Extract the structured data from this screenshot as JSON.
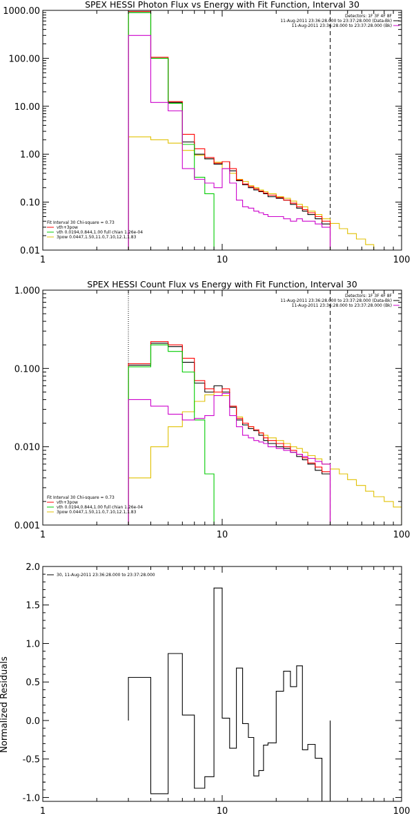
{
  "chart_data": [
    {
      "type": "line",
      "title": "SPEX HESSI Photon Flux vs Energy with Fit Function, Interval 30",
      "xlabel": "",
      "ylabel": "",
      "xscale": "log",
      "yscale": "log",
      "xlim": [
        1,
        100
      ],
      "ylim": [
        0.01,
        1000
      ],
      "x_ticks": [
        {
          "v": 1,
          "label": "1"
        },
        {
          "v": 10,
          "label": "10"
        },
        {
          "v": 100,
          "label": "100"
        }
      ],
      "y_ticks": [
        {
          "v": 0.01,
          "label": "0.01"
        },
        {
          "v": 0.1,
          "label": "0.10"
        },
        {
          "v": 1,
          "label": "1.00"
        },
        {
          "v": 10,
          "label": "10.00"
        },
        {
          "v": 100,
          "label": "100.00"
        },
        {
          "v": 1000,
          "label": "1000.00"
        }
      ],
      "vlines": [
        {
          "x": 3,
          "style": "dotted",
          "color": "#000000"
        },
        {
          "x": 40,
          "style": "dashed",
          "color": "#000000"
        }
      ],
      "header_text": [
        "Detectors: 1F 3F 4F 8F",
        "11-Aug-2011 23:36:28.000 to 23:37:28.000 (Data-Bk)",
        "11-Aug-2011 23:36:28.000 to 23:37:28.000 (Bk)"
      ],
      "header_colors": [
        "",
        "#000000",
        "#cc00cc"
      ],
      "legend_title": "Fit Interval 30   Chi-square = 0.73",
      "legend": [
        {
          "label": "vth+3pow",
          "color": "#ff0000"
        },
        {
          "label": "vth 0.0194,0.844,1.00   full chian 1.26e-04",
          "color": "#00cc00"
        },
        {
          "label": "3pow 0.0447,1.50,11.0,7.10,12.1,1.83",
          "color": "#e0c000"
        }
      ],
      "series": [
        {
          "color": "#e0c000",
          "edges": [
            3,
            4,
            5,
            6,
            7,
            8,
            9,
            10,
            11,
            12,
            13,
            14,
            15,
            16,
            17,
            18,
            20,
            22,
            24,
            26,
            28,
            30,
            33,
            36,
            40,
            45,
            50,
            56,
            63,
            70,
            80
          ],
          "values": [
            2.3,
            2.0,
            1.7,
            1.2,
            0.95,
            0.8,
            0.68,
            0.5,
            0.4,
            0.3,
            0.27,
            0.22,
            0.2,
            0.18,
            0.165,
            0.15,
            0.13,
            0.12,
            0.105,
            0.09,
            0.08,
            0.065,
            0.055,
            0.045,
            0.036,
            0.028,
            0.022,
            0.017,
            0.013,
            0.01
          ]
        },
        {
          "color": "#000000",
          "edges": [
            3,
            4,
            5,
            6,
            7,
            8,
            9,
            10,
            11,
            12,
            13,
            14,
            15,
            16,
            17,
            18,
            20,
            22,
            24,
            26,
            28,
            30,
            33,
            36,
            40
          ],
          "values": [
            900,
            100,
            12,
            1.8,
            1.0,
            0.8,
            0.62,
            0.7,
            0.45,
            0.28,
            0.23,
            0.2,
            0.18,
            0.165,
            0.15,
            0.13,
            0.12,
            0.11,
            0.09,
            0.075,
            0.065,
            0.055,
            0.045,
            0.035
          ]
        },
        {
          "color": "#ff0000",
          "edges": [
            3,
            4,
            5,
            6,
            7,
            8,
            9,
            10,
            11,
            12,
            13,
            14,
            15,
            16,
            17,
            18,
            20,
            22,
            24,
            26,
            28,
            30,
            33,
            36,
            40
          ],
          "values": [
            950,
            105,
            12.5,
            2.6,
            1.3,
            0.85,
            0.65,
            0.7,
            0.5,
            0.29,
            0.24,
            0.21,
            0.19,
            0.17,
            0.155,
            0.14,
            0.125,
            0.11,
            0.095,
            0.08,
            0.07,
            0.06,
            0.05,
            0.04
          ]
        },
        {
          "color": "#00cc00",
          "edges": [
            3,
            4,
            5,
            6,
            7,
            8,
            9
          ],
          "values": [
            900,
            100,
            11.5,
            1.6,
            0.33,
            0.15
          ]
        },
        {
          "color": "#cc00cc",
          "edges": [
            3,
            4,
            5,
            6,
            7,
            8,
            9,
            10,
            11,
            12,
            13,
            14,
            15,
            16,
            17,
            18,
            20,
            22,
            24,
            26,
            28,
            30,
            33,
            36,
            40
          ],
          "values": [
            300,
            12,
            8,
            0.5,
            0.3,
            0.25,
            0.2,
            0.5,
            0.25,
            0.11,
            0.08,
            0.075,
            0.065,
            0.06,
            0.055,
            0.05,
            0.05,
            0.045,
            0.04,
            0.045,
            0.04,
            0.04,
            0.035,
            0.03
          ]
        }
      ]
    },
    {
      "type": "line",
      "title": "SPEX HESSI Count Flux vs Energy with Fit Function, Interval 30",
      "xlabel": "",
      "ylabel": "",
      "xscale": "log",
      "yscale": "log",
      "xlim": [
        1,
        100
      ],
      "ylim": [
        0.001,
        1
      ],
      "x_ticks": [
        {
          "v": 1,
          "label": "1"
        },
        {
          "v": 10,
          "label": "10"
        },
        {
          "v": 100,
          "label": "100"
        }
      ],
      "y_ticks": [
        {
          "v": 0.001,
          "label": "0.001"
        },
        {
          "v": 0.01,
          "label": "0.010"
        },
        {
          "v": 0.1,
          "label": "0.100"
        },
        {
          "v": 1,
          "label": "1.000"
        }
      ],
      "vlines": [
        {
          "x": 3,
          "style": "dotted",
          "color": "#000000"
        },
        {
          "x": 40,
          "style": "dashed",
          "color": "#000000"
        }
      ],
      "header_text": [
        "Detectors: 1F 3F 4F 8F",
        "11-Aug-2011 23:36:28.000 to 23:37:28.000 (Data-Bk)",
        "11-Aug-2011 23:36:28.000 to 23:37:28.000 (Bk)"
      ],
      "header_colors": [
        "",
        "#000000",
        "#cc00cc"
      ],
      "legend_title": "Fit Interval 30   Chi-square = 0.73",
      "legend": [
        {
          "label": "vth+3pow",
          "color": "#ff0000"
        },
        {
          "label": "vth 0.0194,0.844,1.00   full chian 1.26e-04",
          "color": "#00cc00"
        },
        {
          "label": "3pow 0.0447,1.50,11.0,7.10,12.1,1.83",
          "color": "#e0c000"
        }
      ],
      "series": [
        {
          "color": "#e0c000",
          "edges": [
            3,
            4,
            5,
            6,
            7,
            8,
            9,
            10,
            11,
            12,
            13,
            14,
            15,
            16,
            17,
            18,
            20,
            22,
            24,
            26,
            28,
            30,
            33,
            36,
            40,
            45,
            50,
            56,
            63,
            70,
            80,
            90,
            100
          ],
          "values": [
            0.004,
            0.01,
            0.018,
            0.028,
            0.038,
            0.046,
            0.05,
            0.045,
            0.032,
            0.024,
            0.02,
            0.018,
            0.016,
            0.015,
            0.014,
            0.013,
            0.012,
            0.011,
            0.01,
            0.0095,
            0.0085,
            0.0077,
            0.007,
            0.006,
            0.0052,
            0.0045,
            0.0038,
            0.0032,
            0.0027,
            0.0023,
            0.002,
            0.0017
          ]
        },
        {
          "color": "#000000",
          "edges": [
            3,
            4,
            5,
            6,
            7,
            8,
            9,
            10,
            11,
            12,
            13,
            14,
            15,
            16,
            17,
            18,
            20,
            22,
            24,
            26,
            28,
            30,
            33,
            36,
            40
          ],
          "values": [
            0.11,
            0.21,
            0.19,
            0.12,
            0.065,
            0.05,
            0.06,
            0.05,
            0.032,
            0.022,
            0.019,
            0.017,
            0.016,
            0.014,
            0.012,
            0.011,
            0.01,
            0.0095,
            0.0085,
            0.0075,
            0.0068,
            0.006,
            0.005,
            0.0045
          ]
        },
        {
          "color": "#ff0000",
          "edges": [
            3,
            4,
            5,
            6,
            7,
            8,
            9,
            10,
            11,
            12,
            13,
            14,
            15,
            16,
            17,
            18,
            20,
            22,
            24,
            26,
            28,
            30,
            33,
            36,
            40
          ],
          "values": [
            0.115,
            0.22,
            0.2,
            0.135,
            0.07,
            0.055,
            0.05,
            0.055,
            0.033,
            0.023,
            0.02,
            0.018,
            0.0165,
            0.015,
            0.013,
            0.012,
            0.011,
            0.01,
            0.009,
            0.008,
            0.0072,
            0.0062,
            0.0055,
            0.0048
          ]
        },
        {
          "color": "#00cc00",
          "edges": [
            3,
            4,
            5,
            6,
            7,
            8,
            9
          ],
          "values": [
            0.105,
            0.2,
            0.165,
            0.09,
            0.022,
            0.0045
          ]
        },
        {
          "color": "#cc00cc",
          "edges": [
            3,
            4,
            5,
            6,
            7,
            8,
            9,
            10,
            11,
            12,
            13,
            14,
            15,
            16,
            17,
            18,
            20,
            22,
            24,
            26,
            28,
            30,
            33,
            36,
            40
          ],
          "values": [
            0.04,
            0.033,
            0.026,
            0.022,
            0.023,
            0.025,
            0.045,
            0.048,
            0.025,
            0.018,
            0.014,
            0.013,
            0.012,
            0.0115,
            0.011,
            0.01,
            0.0095,
            0.009,
            0.0085,
            0.008,
            0.0075,
            0.0071,
            0.0065,
            0.006
          ]
        }
      ]
    },
    {
      "type": "line",
      "title": "",
      "xlabel": "",
      "ylabel": "Normalized Residuals",
      "xscale": "log",
      "yscale": "linear",
      "xlim": [
        1,
        100
      ],
      "ylim": [
        -1.05,
        2.0
      ],
      "x_ticks": [
        {
          "v": 1,
          "label": "1"
        },
        {
          "v": 10,
          "label": "10"
        },
        {
          "v": 100,
          "label": "100"
        }
      ],
      "y_ticks": [
        {
          "v": -1.0,
          "label": "-1.0"
        },
        {
          "v": -0.5,
          "label": "-0.5"
        },
        {
          "v": 0.0,
          "label": "0.0"
        },
        {
          "v": 0.5,
          "label": "0.5"
        },
        {
          "v": 1.0,
          "label": "1.0"
        },
        {
          "v": 1.5,
          "label": "1.5"
        },
        {
          "v": 2.0,
          "label": "2.0"
        }
      ],
      "vlines": [],
      "header_text": [],
      "header_colors": [],
      "legend_title": "",
      "legend": [
        {
          "label": "30, 11-Aug-2011 23:36:28.000 to 23:37:28.000",
          "color": "#000000"
        }
      ],
      "series": [
        {
          "color": "#000000",
          "edges": [
            3,
            4,
            5,
            6,
            7,
            8,
            9,
            10,
            11,
            12,
            13,
            14,
            15,
            16,
            17,
            18,
            20,
            22,
            24,
            26,
            28,
            30,
            33,
            36,
            40
          ],
          "values": [
            0.56,
            -0.95,
            0.87,
            0.07,
            -0.88,
            -0.73,
            1.72,
            0.03,
            -0.36,
            0.68,
            -0.04,
            -0.22,
            -0.72,
            -0.65,
            -0.32,
            -0.29,
            0.38,
            0.64,
            0.44,
            0.71,
            -0.38,
            -0.31,
            -0.49,
            -1.05
          ]
        }
      ]
    }
  ]
}
